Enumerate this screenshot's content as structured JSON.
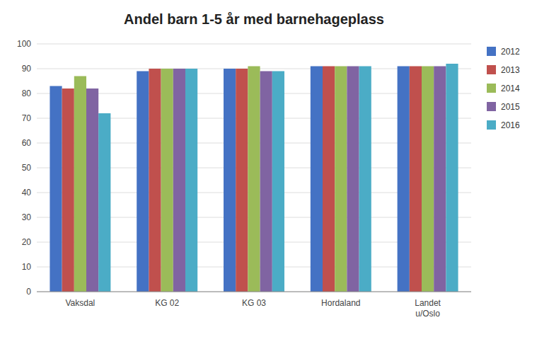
{
  "chart_data": {
    "type": "bar",
    "title": "Andel barn 1-5 år med barnehageplass",
    "categories": [
      "Vaksdal",
      "KG 02",
      "KG 03",
      "Hordaland",
      "Landet\nu/Oslo"
    ],
    "series": [
      {
        "name": "2012",
        "color": "#4472C4",
        "values": [
          83,
          89,
          90,
          91,
          91
        ]
      },
      {
        "name": "2013",
        "color": "#C0504D",
        "values": [
          82,
          90,
          90,
          91,
          91
        ]
      },
      {
        "name": "2014",
        "color": "#9BBB59",
        "values": [
          87,
          90,
          91,
          91,
          91
        ]
      },
      {
        "name": "2015",
        "color": "#8064A2",
        "values": [
          82,
          90,
          89,
          91,
          91
        ]
      },
      {
        "name": "2016",
        "color": "#4BACC6",
        "values": [
          72,
          90,
          89,
          91,
          92
        ]
      }
    ],
    "ylim": [
      0,
      100
    ],
    "yticks": [
      0,
      10,
      20,
      30,
      40,
      50,
      60,
      70,
      80,
      90,
      100
    ],
    "grid": true,
    "legend": "right"
  }
}
